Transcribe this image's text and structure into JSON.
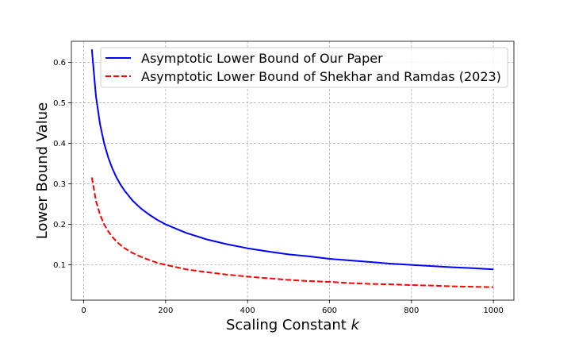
{
  "chart_data": {
    "type": "line",
    "xlabel": "Scaling Constant",
    "xlabel_var": "k",
    "ylabel": "Lower Bound Value",
    "xlim": [
      -30,
      1050
    ],
    "ylim": [
      0.013,
      0.652
    ],
    "xticks": [
      0,
      200,
      400,
      600,
      800,
      1000
    ],
    "xtick_labels": [
      "0",
      "200",
      "400",
      "600",
      "800",
      "1000"
    ],
    "yticks": [
      0.1,
      0.2,
      0.3,
      0.4,
      0.5,
      0.6
    ],
    "ytick_labels": [
      "0.1",
      "0.2",
      "0.3",
      "0.4",
      "0.5",
      "0.6"
    ],
    "grid": true,
    "legend_position": "top-right",
    "series": [
      {
        "name": "Asymptotic Lower Bound of Our Paper",
        "color": "#0000ff",
        "style": "solid",
        "x": [
          20,
          30,
          40,
          50,
          60,
          70,
          80,
          90,
          100,
          120,
          140,
          160,
          180,
          200,
          250,
          300,
          350,
          400,
          450,
          500,
          550,
          600,
          650,
          700,
          750,
          800,
          850,
          900,
          950,
          1000
        ],
        "y": [
          0.632,
          0.516,
          0.447,
          0.4,
          0.365,
          0.338,
          0.316,
          0.298,
          0.283,
          0.258,
          0.239,
          0.224,
          0.211,
          0.2,
          0.179,
          0.163,
          0.151,
          0.141,
          0.133,
          0.126,
          0.121,
          0.115,
          0.111,
          0.107,
          0.103,
          0.1,
          0.097,
          0.094,
          0.092,
          0.089
        ]
      },
      {
        "name": "Asymptotic Lower Bound of Shekhar and Ramdas (2023)",
        "color": "#ff0000",
        "style": "dashed",
        "x": [
          20,
          30,
          40,
          50,
          60,
          70,
          80,
          90,
          100,
          120,
          140,
          160,
          180,
          200,
          250,
          300,
          350,
          400,
          450,
          500,
          550,
          600,
          650,
          700,
          750,
          800,
          850,
          900,
          950,
          1000
        ],
        "y": [
          0.316,
          0.258,
          0.224,
          0.2,
          0.183,
          0.169,
          0.158,
          0.149,
          0.141,
          0.129,
          0.12,
          0.112,
          0.105,
          0.1,
          0.089,
          0.082,
          0.076,
          0.071,
          0.067,
          0.063,
          0.06,
          0.058,
          0.055,
          0.053,
          0.052,
          0.05,
          0.049,
          0.047,
          0.046,
          0.045
        ]
      }
    ]
  }
}
